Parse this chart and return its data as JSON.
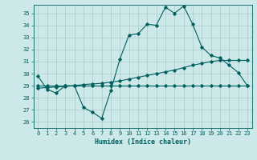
{
  "title": "",
  "xlabel": "Humidex (Indice chaleur)",
  "xlim": [
    -0.5,
    23.5
  ],
  "ylim": [
    25.5,
    35.7
  ],
  "yticks": [
    26,
    27,
    28,
    29,
    30,
    31,
    32,
    33,
    34,
    35
  ],
  "xticks": [
    0,
    1,
    2,
    3,
    4,
    5,
    6,
    7,
    8,
    9,
    10,
    11,
    12,
    13,
    14,
    15,
    16,
    17,
    18,
    19,
    20,
    21,
    22,
    23
  ],
  "bg_color": "#cde8e8",
  "line_color": "#006060",
  "grid_color": "#aacccc",
  "line1_y": [
    29.8,
    28.7,
    28.4,
    29.0,
    29.0,
    27.2,
    26.8,
    26.3,
    28.6,
    31.2,
    33.2,
    33.3,
    34.1,
    34.0,
    35.5,
    35.0,
    35.6,
    34.1,
    32.2,
    31.5,
    31.3,
    30.7,
    30.1,
    29.0
  ],
  "line2_y": [
    29.0,
    29.0,
    29.0,
    29.0,
    29.0,
    29.0,
    29.0,
    29.0,
    29.0,
    29.0,
    29.0,
    29.0,
    29.0,
    29.0,
    29.0,
    29.0,
    29.0,
    29.0,
    29.0,
    29.0,
    29.0,
    29.0,
    29.0,
    29.0
  ],
  "line3_y": [
    28.8,
    28.85,
    28.9,
    28.95,
    29.0,
    29.1,
    29.15,
    29.2,
    29.3,
    29.4,
    29.55,
    29.7,
    29.85,
    30.0,
    30.15,
    30.3,
    30.5,
    30.7,
    30.85,
    31.0,
    31.1,
    31.1,
    31.1,
    31.1
  ]
}
